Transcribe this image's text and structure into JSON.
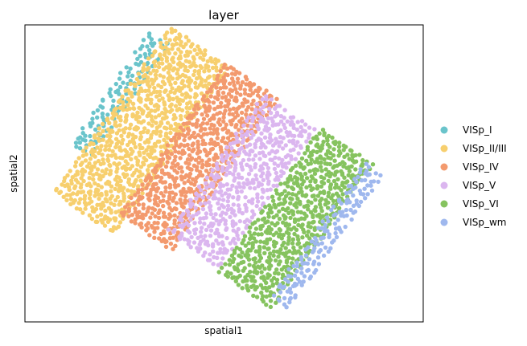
{
  "chart_data": {
    "type": "scatter",
    "title": "layer",
    "xlabel": "spatial1",
    "ylabel": "spatial2",
    "ticks": "none",
    "grid": false,
    "legend_position": "right",
    "series": [
      {
        "name": "VISp_I",
        "color": "#6ac4cb",
        "region": {
          "center": [
            148,
            117
          ],
          "angle": 125,
          "along": 85,
          "across": 14,
          "density": 0.75
        }
      },
      {
        "name": "VISp_II/III",
        "color": "#f7cf6e",
        "region": {
          "center": [
            175,
            162
          ],
          "angle": 125,
          "along": 125,
          "across": 45,
          "density": 1.0
        }
      },
      {
        "name": "VISp_IV",
        "color": "#f39a6e",
        "region": {
          "center": [
            246,
            196
          ],
          "angle": 125,
          "along": 115,
          "across": 38,
          "density": 1.0
        }
      },
      {
        "name": "VISp_V",
        "color": "#dbb6ef",
        "region": {
          "center": [
            298,
            227
          ],
          "angle": 125,
          "along": 105,
          "across": 38,
          "density": 0.9
        }
      },
      {
        "name": "VISp_VI",
        "color": "#86c35f",
        "region": {
          "center": [
            365,
            272
          ],
          "angle": 125,
          "along": 110,
          "across": 40,
          "density": 1.0
        }
      },
      {
        "name": "VISp_wm",
        "color": "#9fb8ee",
        "region": {
          "center": [
            404,
            292
          ],
          "angle": 125,
          "along": 100,
          "across": 14,
          "density": 0.85
        }
      }
    ]
  }
}
